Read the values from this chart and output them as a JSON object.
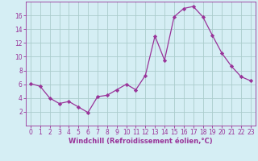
{
  "x": [
    0,
    1,
    2,
    3,
    4,
    5,
    6,
    7,
    8,
    9,
    10,
    11,
    12,
    13,
    14,
    15,
    16,
    17,
    18,
    19,
    20,
    21,
    22,
    23
  ],
  "y": [
    6.1,
    5.7,
    4.0,
    3.2,
    3.5,
    2.7,
    1.9,
    4.2,
    4.4,
    5.2,
    6.0,
    5.2,
    7.3,
    13.0,
    9.5,
    15.8,
    17.0,
    17.3,
    15.8,
    13.1,
    10.5,
    8.6,
    7.1,
    6.5
  ],
  "line_color": "#993399",
  "marker_color": "#993399",
  "bg_color": "#d5eef4",
  "grid_color": "#aacccc",
  "axis_color": "#993399",
  "tick_color": "#993399",
  "xlabel": "Windchill (Refroidissement éolien,°C)",
  "ylabel": "",
  "ylim": [
    0,
    18
  ],
  "xlim": [
    -0.5,
    23.5
  ],
  "yticks": [
    2,
    4,
    6,
    8,
    10,
    12,
    14,
    16
  ],
  "xticks": [
    0,
    1,
    2,
    3,
    4,
    5,
    6,
    7,
    8,
    9,
    10,
    11,
    12,
    13,
    14,
    15,
    16,
    17,
    18,
    19,
    20,
    21,
    22,
    23
  ],
  "tick_fontsize": 5.5,
  "xlabel_fontsize": 6.0,
  "linewidth": 0.9,
  "markersize": 2.2
}
